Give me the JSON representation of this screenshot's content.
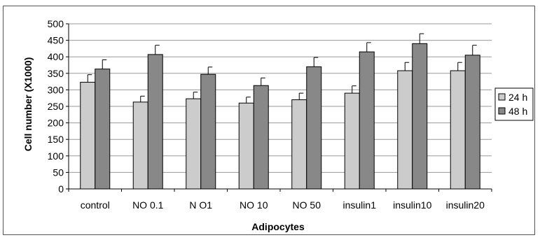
{
  "chart_data": {
    "type": "bar",
    "title": "",
    "xlabel": "Adipocytes",
    "ylabel": "Cell number (X1000)",
    "ylim": [
      0,
      500
    ],
    "yticks": [
      0,
      50,
      100,
      150,
      200,
      250,
      300,
      350,
      400,
      450,
      500
    ],
    "grid": true,
    "legend_position": "right",
    "categories": [
      "control",
      "NO 0.1",
      "N O1",
      "NO 10",
      "NO 50",
      "insulin1",
      "insulin10",
      "insulin20"
    ],
    "series": [
      {
        "name": "24 h",
        "color": "#cccccc",
        "values": [
          323,
          263,
          273,
          260,
          270,
          290,
          358,
          358
        ],
        "errors": [
          23,
          18,
          20,
          18,
          20,
          22,
          25,
          25
        ]
      },
      {
        "name": "48 h",
        "color": "#888888",
        "values": [
          363,
          407,
          347,
          313,
          370,
          415,
          440,
          405
        ],
        "errors": [
          28,
          28,
          22,
          23,
          28,
          28,
          30,
          30
        ]
      }
    ]
  }
}
